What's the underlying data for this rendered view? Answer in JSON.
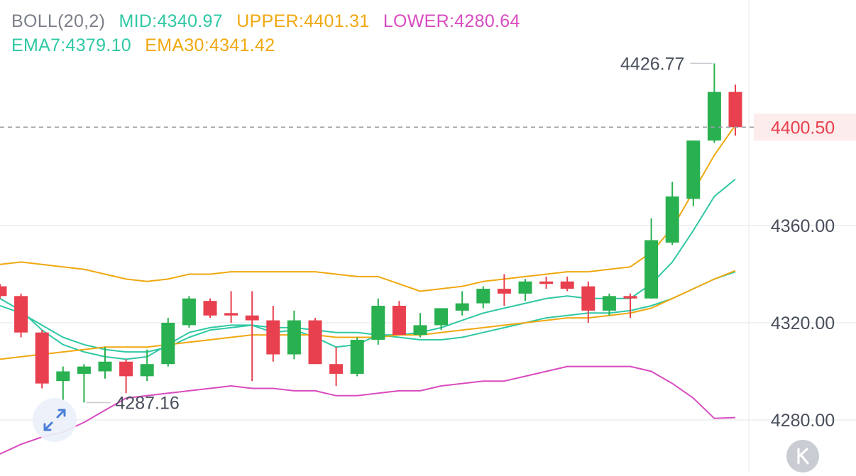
{
  "legend": {
    "boll": {
      "label": "BOLL(20,2)",
      "color": "#7b7f88"
    },
    "mid": {
      "label": "MID:4340.97",
      "color": "#2fc8a4"
    },
    "upper": {
      "label": "UPPER:4401.31",
      "color": "#f0a810"
    },
    "lower": {
      "label": "LOWER:4280.64",
      "color": "#d94bbf"
    },
    "ema7": {
      "label": "EMA7:4379.10",
      "color": "#2fc8a4"
    },
    "ema30": {
      "label": "EMA30:4341.42",
      "color": "#f0a810"
    }
  },
  "colors": {
    "up": "#29b050",
    "down": "#e8404e",
    "price_tag": "#e8404e",
    "price_tag_bg": "#fdecec"
  },
  "current_price": "4400.50",
  "chart_data": {
    "type": "candlestick",
    "y_ticks": [
      "4360.00",
      "4320.00",
      "4280.00"
    ],
    "ylim": [
      4265,
      4445
    ],
    "grid": true,
    "annotations": {
      "high": "4426.77",
      "low": "4287.16"
    },
    "candles": [
      {
        "o": 4335,
        "h": 4336,
        "l": 4330,
        "c": 4331
      },
      {
        "o": 4331,
        "h": 4332,
        "l": 4314,
        "c": 4316
      },
      {
        "o": 4316,
        "h": 4317,
        "l": 4293,
        "c": 4295
      },
      {
        "o": 4296,
        "h": 4302,
        "l": 4288,
        "c": 4300
      },
      {
        "o": 4299,
        "h": 4303,
        "l": 4287.16,
        "c": 4302
      },
      {
        "o": 4300,
        "h": 4310,
        "l": 4297,
        "c": 4304
      },
      {
        "o": 4304,
        "h": 4305,
        "l": 4291,
        "c": 4298
      },
      {
        "o": 4298,
        "h": 4309,
        "l": 4296,
        "c": 4303
      },
      {
        "o": 4303,
        "h": 4322,
        "l": 4302,
        "c": 4320
      },
      {
        "o": 4319,
        "h": 4331,
        "l": 4318,
        "c": 4330
      },
      {
        "o": 4329,
        "h": 4330,
        "l": 4322,
        "c": 4323
      },
      {
        "o": 4324,
        "h": 4333,
        "l": 4320,
        "c": 4323
      },
      {
        "o": 4323,
        "h": 4333,
        "l": 4296,
        "c": 4321
      },
      {
        "o": 4321,
        "h": 4327,
        "l": 4304,
        "c": 4307
      },
      {
        "o": 4307,
        "h": 4325,
        "l": 4305,
        "c": 4321
      },
      {
        "o": 4321,
        "h": 4322,
        "l": 4303,
        "c": 4303
      },
      {
        "o": 4303,
        "h": 4310,
        "l": 4294,
        "c": 4299
      },
      {
        "o": 4299,
        "h": 4314,
        "l": 4298,
        "c": 4313
      },
      {
        "o": 4313,
        "h": 4330,
        "l": 4311,
        "c": 4327
      },
      {
        "o": 4327,
        "h": 4329,
        "l": 4315,
        "c": 4315
      },
      {
        "o": 4315,
        "h": 4324,
        "l": 4314,
        "c": 4319
      },
      {
        "o": 4319,
        "h": 4326,
        "l": 4317,
        "c": 4326
      },
      {
        "o": 4325,
        "h": 4333,
        "l": 4323,
        "c": 4328
      },
      {
        "o": 4328,
        "h": 4335,
        "l": 4326,
        "c": 4334
      },
      {
        "o": 4334,
        "h": 4340,
        "l": 4327,
        "c": 4332
      },
      {
        "o": 4332,
        "h": 4338,
        "l": 4329,
        "c": 4337
      },
      {
        "o": 4337,
        "h": 4339,
        "l": 4334,
        "c": 4336
      },
      {
        "o": 4337,
        "h": 4339,
        "l": 4333,
        "c": 4334
      },
      {
        "o": 4335,
        "h": 4337,
        "l": 4320,
        "c": 4325
      },
      {
        "o": 4325,
        "h": 4332,
        "l": 4323,
        "c": 4331
      },
      {
        "o": 4331,
        "h": 4332,
        "l": 4322,
        "c": 4330
      },
      {
        "o": 4330,
        "h": 4363,
        "l": 4330,
        "c": 4354
      },
      {
        "o": 4353,
        "h": 4378,
        "l": 4352,
        "c": 4372
      },
      {
        "o": 4371,
        "h": 4395,
        "l": 4368,
        "c": 4395
      },
      {
        "o": 4395,
        "h": 4426.77,
        "l": 4394,
        "c": 4415
      },
      {
        "o": 4415,
        "h": 4418,
        "l": 4397,
        "c": 4400.5
      }
    ],
    "series": [
      {
        "key": "upper",
        "values": [
          4344,
          4345,
          4344,
          4343,
          4342,
          4340,
          4338,
          4337,
          4338,
          4340,
          4340,
          4341,
          4341,
          4341,
          4341,
          4341,
          4340,
          4339,
          4339,
          4336,
          4333,
          4334,
          4335,
          4337,
          4338,
          4339,
          4340,
          4341,
          4341,
          4342,
          4343,
          4349,
          4359,
          4374,
          4389,
          4401.31
        ]
      },
      {
        "key": "lower",
        "values": [
          4266,
          4270,
          4273,
          4275,
          4279,
          4284,
          4289,
          4290,
          4291,
          4292,
          4293,
          4294,
          4293,
          4293,
          4292,
          4292,
          4290,
          4290,
          4291,
          4292,
          4292,
          4294,
          4295,
          4296,
          4296,
          4298,
          4300,
          4302,
          4302,
          4302,
          4302,
          4300,
          4295,
          4289,
          4280.64,
          4281
        ]
      },
      {
        "key": "mid",
        "values": [
          4327,
          4324,
          4319,
          4314,
          4311,
          4309,
          4308,
          4308,
          4310,
          4314,
          4317,
          4318,
          4319,
          4318,
          4318,
          4317,
          4316,
          4316,
          4315,
          4314,
          4313,
          4313,
          4314,
          4316,
          4318,
          4320,
          4322,
          4323,
          4324,
          4324,
          4325,
          4327,
          4330,
          4334,
          4338,
          4340.97
        ]
      },
      {
        "key": "ema7",
        "values": [
          4330,
          4325,
          4317,
          4311,
          4308,
          4306,
          4305,
          4306,
          4311,
          4316,
          4318,
          4319,
          4319,
          4316,
          4317,
          4314,
          4310,
          4311,
          4315,
          4315,
          4316,
          4318,
          4321,
          4324,
          4326,
          4328,
          4330,
          4331,
          4330,
          4330,
          4330,
          4336,
          4345,
          4358,
          4372,
          4379.1
        ]
      },
      {
        "key": "ema30",
        "values": [
          4305,
          4306,
          4307,
          4308,
          4309,
          4310,
          4310,
          4310,
          4311,
          4312,
          4313,
          4314,
          4315,
          4315,
          4315,
          4315,
          4314,
          4314,
          4314,
          4315,
          4315,
          4316,
          4317,
          4318,
          4319,
          4320,
          4321,
          4322,
          4322,
          4323,
          4324,
          4326,
          4330,
          4334,
          4338,
          4341.42
        ]
      }
    ]
  }
}
